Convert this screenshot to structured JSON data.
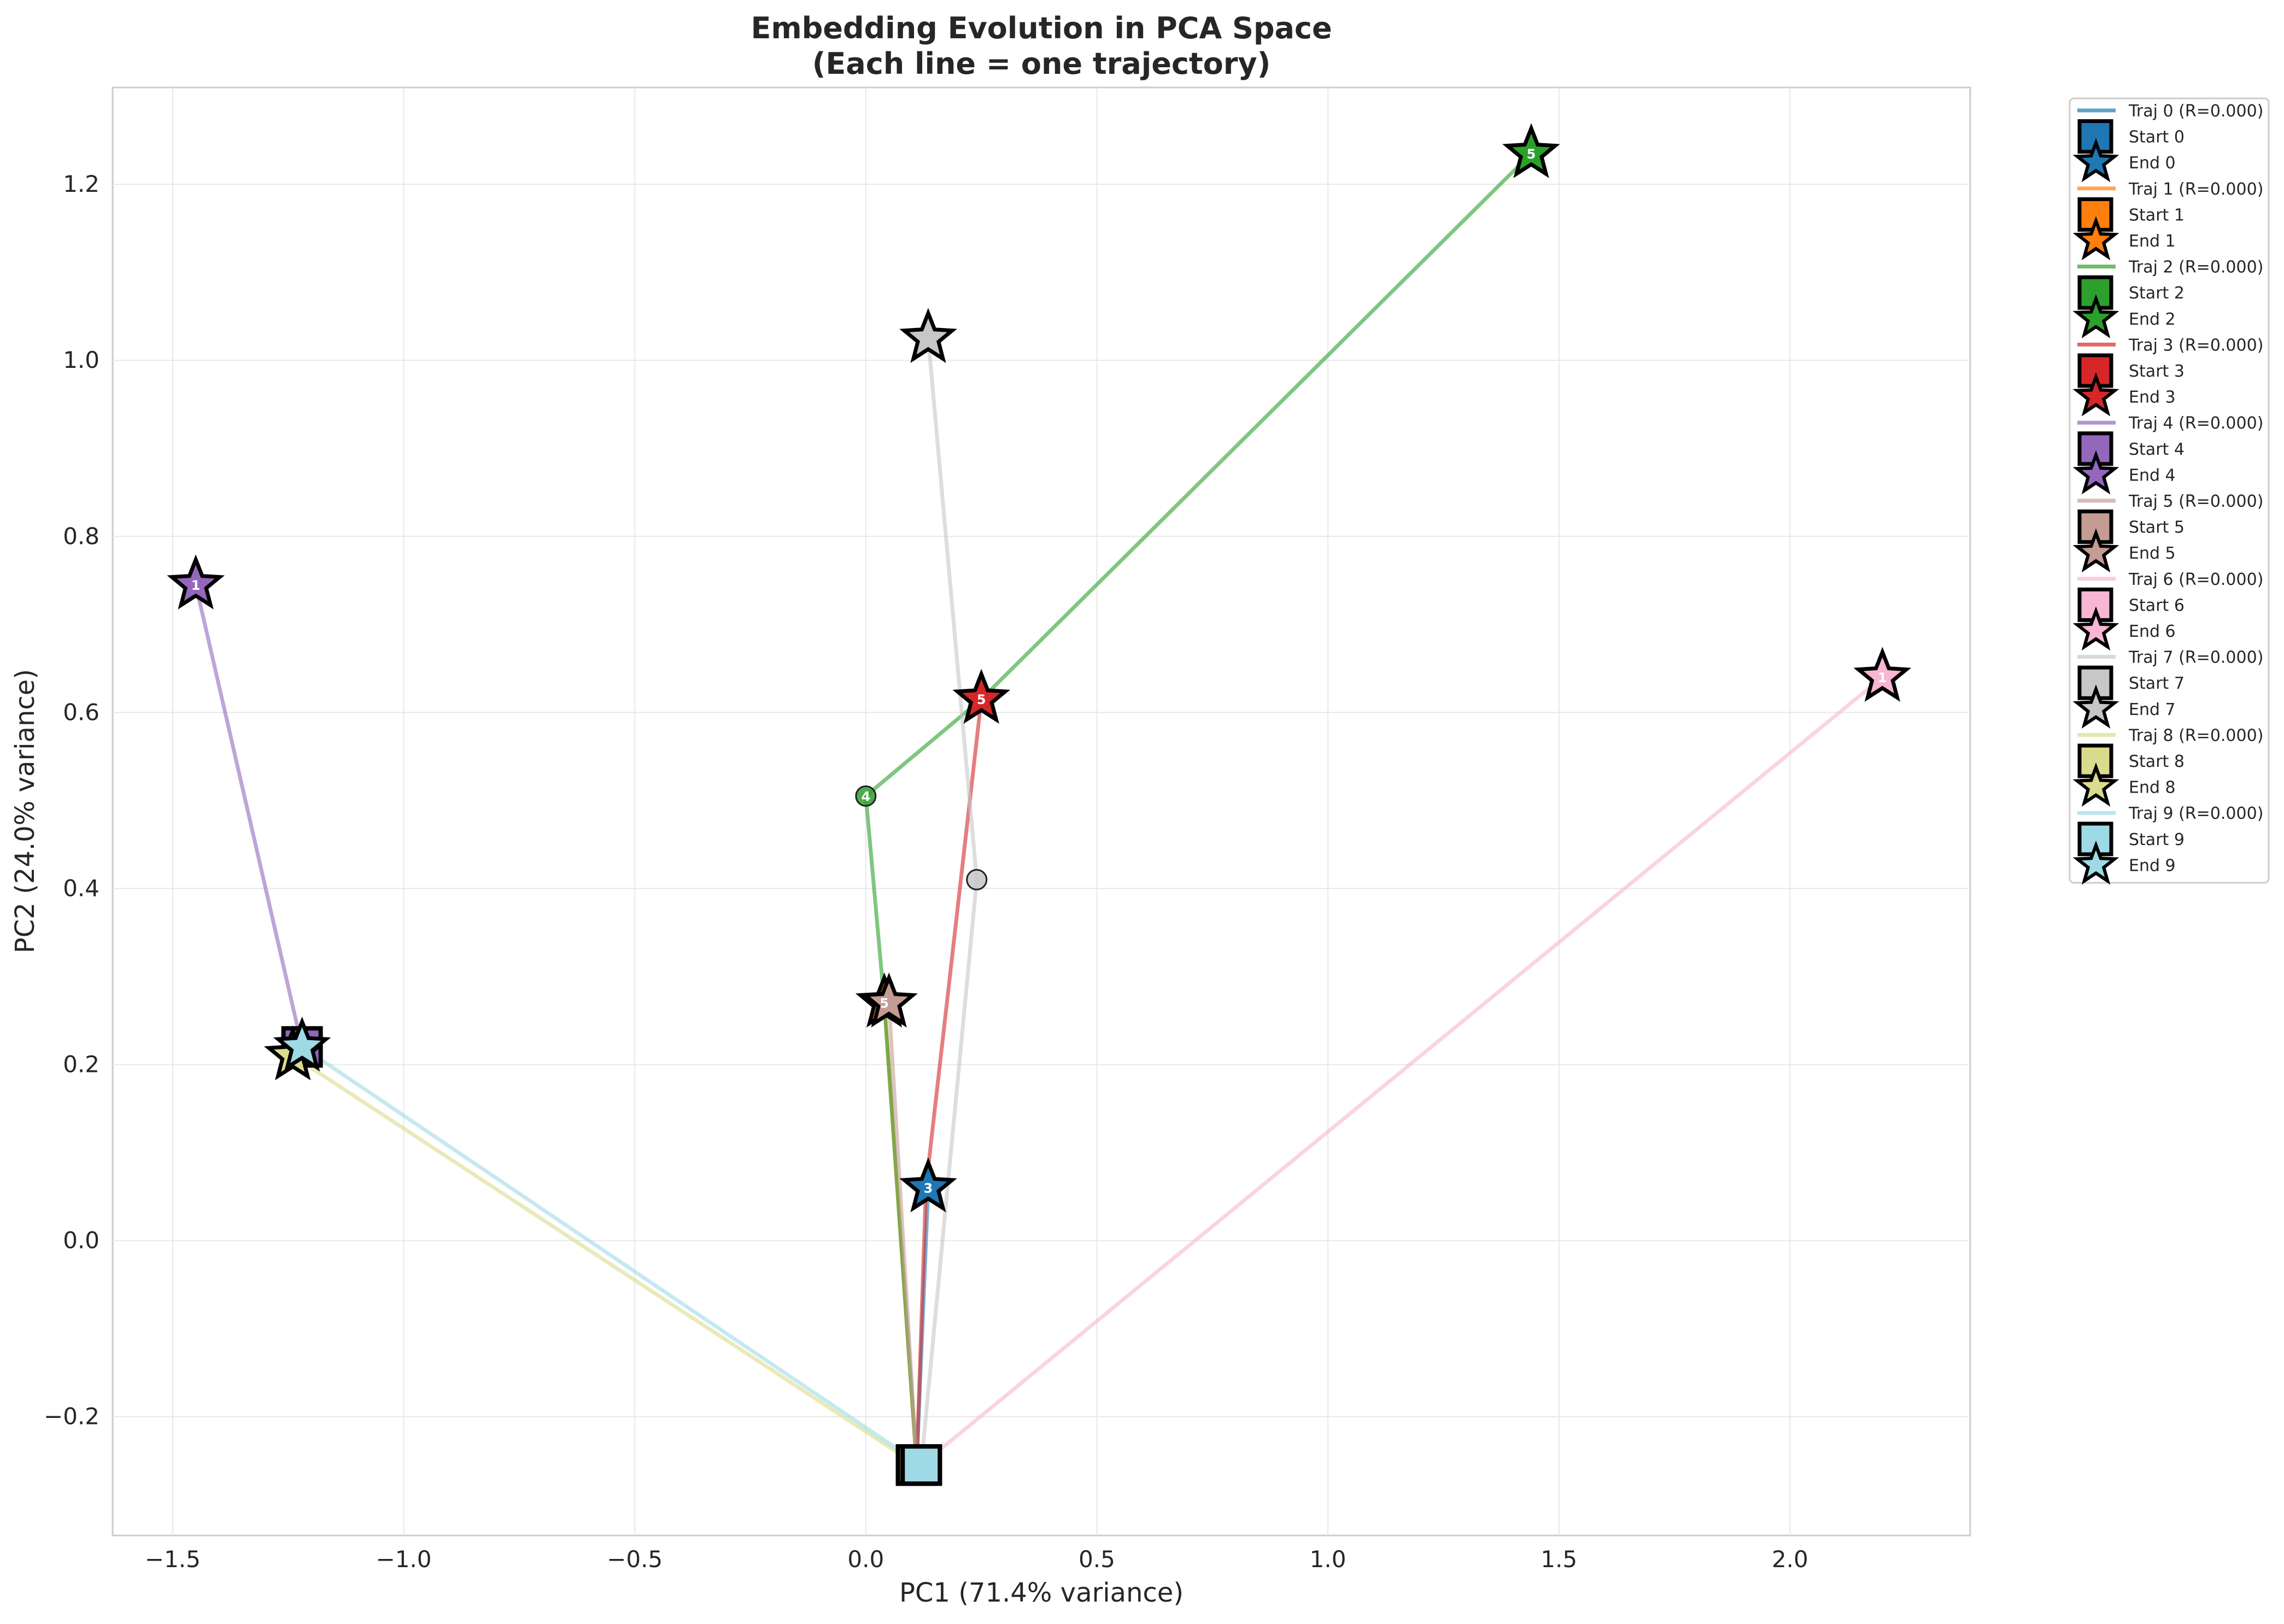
{
  "chart_data": {
    "type": "line",
    "title_line1": "Embedding Evolution in PCA Space",
    "title_line2": "(Each line = one trajectory)",
    "xlabel": "PC1 (71.4% variance)",
    "ylabel": "PC2 (24.0% variance)",
    "xlim": [
      -1.63,
      2.39
    ],
    "ylim": [
      -0.335,
      1.31
    ],
    "xticks": [
      -1.5,
      -1.0,
      -0.5,
      0.0,
      0.5,
      1.0,
      1.5,
      2.0
    ],
    "xtick_labels": [
      "−1.5",
      "−1.0",
      "−0.5",
      "0.0",
      "0.5",
      "1.0",
      "1.5",
      "2.0"
    ],
    "yticks": [
      -0.2,
      0.0,
      0.2,
      0.4,
      0.6,
      0.8,
      1.0,
      1.2
    ],
    "ytick_labels": [
      "−0.2",
      "0.0",
      "0.2",
      "0.4",
      "0.6",
      "0.8",
      "1.0",
      "1.2"
    ],
    "grid": true,
    "legend_position": "outside-top-right",
    "series": [
      {
        "name": "Traj 0 (R=0.000)",
        "start_label": "Start 0",
        "end_label": "End 0",
        "color": "#1f77b4",
        "points": [
          {
            "x": 0.11,
            "y": -0.255
          },
          {
            "x": 0.135,
            "y": 0.06
          }
        ]
      },
      {
        "name": "Traj 1 (R=0.000)",
        "start_label": "Start 1",
        "end_label": "End 1",
        "color": "#ff7f0e",
        "points": [
          {
            "x": 0.11,
            "y": -0.255
          },
          {
            "x": 0.04,
            "y": 0.27
          }
        ]
      },
      {
        "name": "Traj 2 (R=0.000)",
        "start_label": "Start 2",
        "end_label": "End 2",
        "color": "#2ca02c",
        "points": [
          {
            "x": 0.11,
            "y": -0.255
          },
          {
            "x": 0.04,
            "y": 0.27
          },
          {
            "x": 0.0,
            "y": 0.505
          },
          {
            "x": 0.25,
            "y": 0.615
          },
          {
            "x": 1.44,
            "y": 1.235
          }
        ]
      },
      {
        "name": "Traj 3 (R=0.000)",
        "start_label": "Start 3",
        "end_label": "End 3",
        "color": "#d62728",
        "points": [
          {
            "x": 0.11,
            "y": -0.255
          },
          {
            "x": 0.13,
            "y": 0.06
          },
          {
            "x": 0.25,
            "y": 0.615
          }
        ]
      },
      {
        "name": "Traj 4 (R=0.000)",
        "start_label": "Start 4",
        "end_label": "End 4",
        "color": "#9467bd",
        "points": [
          {
            "x": -1.22,
            "y": 0.22
          },
          {
            "x": -1.45,
            "y": 0.745
          }
        ]
      },
      {
        "name": "Traj 5 (R=0.000)",
        "start_label": "Start 5",
        "end_label": "End 5",
        "color": "#c49c94",
        "points": [
          {
            "x": 0.11,
            "y": -0.255
          },
          {
            "x": 0.05,
            "y": 0.27
          }
        ]
      },
      {
        "name": "Traj 6 (R=0.000)",
        "start_label": "Start 6",
        "end_label": "End 6",
        "color": "#f7b6d2",
        "points": [
          {
            "x": 0.12,
            "y": -0.255
          },
          {
            "x": 2.2,
            "y": 0.64
          }
        ]
      },
      {
        "name": "Traj 7 (R=0.000)",
        "start_label": "Start 7",
        "end_label": "End 7",
        "color": "#c7c7c7",
        "points": [
          {
            "x": 0.12,
            "y": -0.255
          },
          {
            "x": 0.24,
            "y": 0.41
          },
          {
            "x": 0.135,
            "y": 1.025
          }
        ]
      },
      {
        "name": "Traj 8 (R=0.000)",
        "start_label": "Start 8",
        "end_label": "End 8",
        "color": "#dbdb8d",
        "points": [
          {
            "x": 0.11,
            "y": -0.255
          },
          {
            "x": -1.24,
            "y": 0.21
          }
        ]
      },
      {
        "name": "Traj 9 (R=0.000)",
        "start_label": "Start 9",
        "end_label": "End 9",
        "color": "#9edae5",
        "points": [
          {
            "x": 0.12,
            "y": -0.255
          },
          {
            "x": -1.22,
            "y": 0.22
          }
        ]
      }
    ],
    "point_labels": [
      {
        "text": "4",
        "x": 0.0,
        "y": 0.505,
        "color": "#2ca02c"
      },
      {
        "text": "5",
        "x": 1.44,
        "y": 1.235,
        "color": "#2ca02c"
      },
      {
        "text": "5",
        "x": 0.25,
        "y": 0.615,
        "color": "#d62728"
      },
      {
        "text": "3",
        "x": 0.135,
        "y": 0.06,
        "color": "#d62728"
      },
      {
        "text": "5",
        "x": 0.04,
        "y": 0.27,
        "color": "#ff7f0e"
      },
      {
        "text": "1",
        "x": -1.45,
        "y": 0.745,
        "color": "#9467bd"
      },
      {
        "text": "1",
        "x": 2.2,
        "y": 0.64,
        "color": "#f7b6d2"
      }
    ]
  }
}
